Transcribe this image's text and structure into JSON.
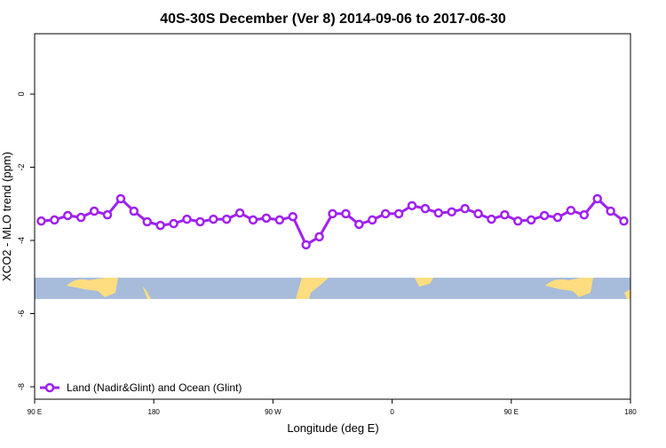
{
  "chart_data": {
    "type": "line",
    "title": "40S-30S December (Ver 8)   2014-09-06 to 2017-06-30",
    "xlabel": "Longitude (deg E)",
    "ylabel": "XCO2 - MLO trend (ppm)",
    "x": [
      95,
      105,
      115,
      125,
      135,
      145,
      155,
      165,
      175,
      185,
      195,
      205,
      215,
      225,
      235,
      245,
      255,
      265,
      275,
      285,
      295,
      305,
      315,
      325,
      335,
      345,
      355,
      365,
      375,
      385,
      395,
      405,
      415,
      425,
      435,
      445,
      455,
      465,
      475,
      485,
      495,
      505,
      515,
      525,
      535
    ],
    "series": [
      {
        "name": "Land (Nadir&Glint) and Ocean (Glint)",
        "color": "#a020f0",
        "values": [
          -3.47,
          -3.44,
          -3.32,
          -3.37,
          -3.2,
          -3.3,
          -2.86,
          -3.2,
          -3.49,
          -3.59,
          -3.54,
          -3.42,
          -3.49,
          -3.42,
          -3.42,
          -3.25,
          -3.44,
          -3.39,
          -3.44,
          -3.35,
          -4.12,
          -3.9,
          -3.27,
          -3.27,
          -3.56,
          -3.44,
          -3.27,
          -3.27,
          -3.05,
          -3.13,
          -3.25,
          -3.22,
          -3.13,
          -3.27,
          -3.42,
          -3.3,
          -3.47,
          -3.44,
          -3.32,
          -3.37,
          -3.18,
          -3.3,
          -2.86,
          -3.2,
          -3.47
        ]
      }
    ],
    "xlim": [
      90,
      540
    ],
    "xticks": [
      {
        "value": 90,
        "label": "90 E"
      },
      180,
      {
        "value": 270,
        "label": "90 W"
      },
      {
        "value": 360,
        "label": "0"
      },
      {
        "value": 450,
        "label": "90 E"
      },
      {
        "value": 540,
        "label": "180"
      }
    ],
    "ylim": [
      -8.34,
      1.65
    ],
    "yticks": [
      0,
      -2,
      -4,
      -6,
      -8
    ],
    "legend": "bottom-left"
  }
}
